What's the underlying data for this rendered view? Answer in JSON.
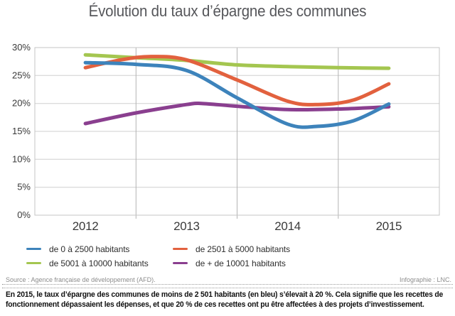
{
  "title": "Évolution du taux d’épargne des communes",
  "chart_data": {
    "type": "line",
    "title": "Évolution du taux d’épargne des communes",
    "x_categories": [
      "2012",
      "2013",
      "2014",
      "2015"
    ],
    "x_range": [
      2012,
      2015
    ],
    "xlabel": "",
    "ylabel": "",
    "ylim": [
      0,
      30
    ],
    "ytick_step": 5,
    "ytick_labels": [
      "0%",
      "5%",
      "10%",
      "15%",
      "20%",
      "25%",
      "30%"
    ],
    "grid": true,
    "legend_position": "bottom",
    "series": [
      {
        "name": "de 0 à 2500 habitants",
        "color": "#3d83bb",
        "points": [
          [
            2012,
            27.3
          ],
          [
            2012.5,
            27.0
          ],
          [
            2013,
            25.9
          ],
          [
            2013.5,
            21.0
          ],
          [
            2014,
            16.3
          ],
          [
            2014.3,
            15.9
          ],
          [
            2014.65,
            16.9
          ],
          [
            2015,
            19.9
          ]
        ]
      },
      {
        "name": "de 2501 à 5000 habitants",
        "color": "#e2613e",
        "points": [
          [
            2012,
            26.4
          ],
          [
            2012.35,
            27.8
          ],
          [
            2012.65,
            28.4
          ],
          [
            2013,
            27.8
          ],
          [
            2013.5,
            24.2
          ],
          [
            2014,
            20.4
          ],
          [
            2014.3,
            19.8
          ],
          [
            2014.65,
            20.6
          ],
          [
            2015,
            23.5
          ]
        ]
      },
      {
        "name": "de 5001 à 10000 habitants",
        "color": "#a4c650",
        "points": [
          [
            2012,
            28.7
          ],
          [
            2012.5,
            28.2
          ],
          [
            2013,
            27.7
          ],
          [
            2013.5,
            26.9
          ],
          [
            2014,
            26.6
          ],
          [
            2014.5,
            26.4
          ],
          [
            2015,
            26.3
          ]
        ]
      },
      {
        "name": "de + de 10001 habitants",
        "color": "#8a3f8f",
        "points": [
          [
            2012,
            16.4
          ],
          [
            2012.5,
            18.3
          ],
          [
            2013,
            19.8
          ],
          [
            2013.15,
            20.0
          ],
          [
            2013.5,
            19.5
          ],
          [
            2014,
            18.9
          ],
          [
            2014.5,
            19.0
          ],
          [
            2015,
            19.4
          ]
        ]
      }
    ],
    "colors": {
      "grid_horizontal": "#cfcfcf",
      "grid_vertical": "#b3b3b3",
      "plot_border": "#c6c6c6",
      "axis_text": "#3a3a3a",
      "title_text": "#55565a"
    }
  },
  "source": {
    "left": "Source : Agence française de développement (AFD).",
    "right": "Infographie : LNC."
  },
  "footer": {
    "text": "En 2015, le taux d’épargne des communes de moins de 2 501 habitants (en bleu) s’élevait à 20 %. Cela signifie que les recettes de fonctionnement dépassaient les dépenses, et que 20 % de ces recettes ont pu être affectées à des projets d’investissement."
  }
}
